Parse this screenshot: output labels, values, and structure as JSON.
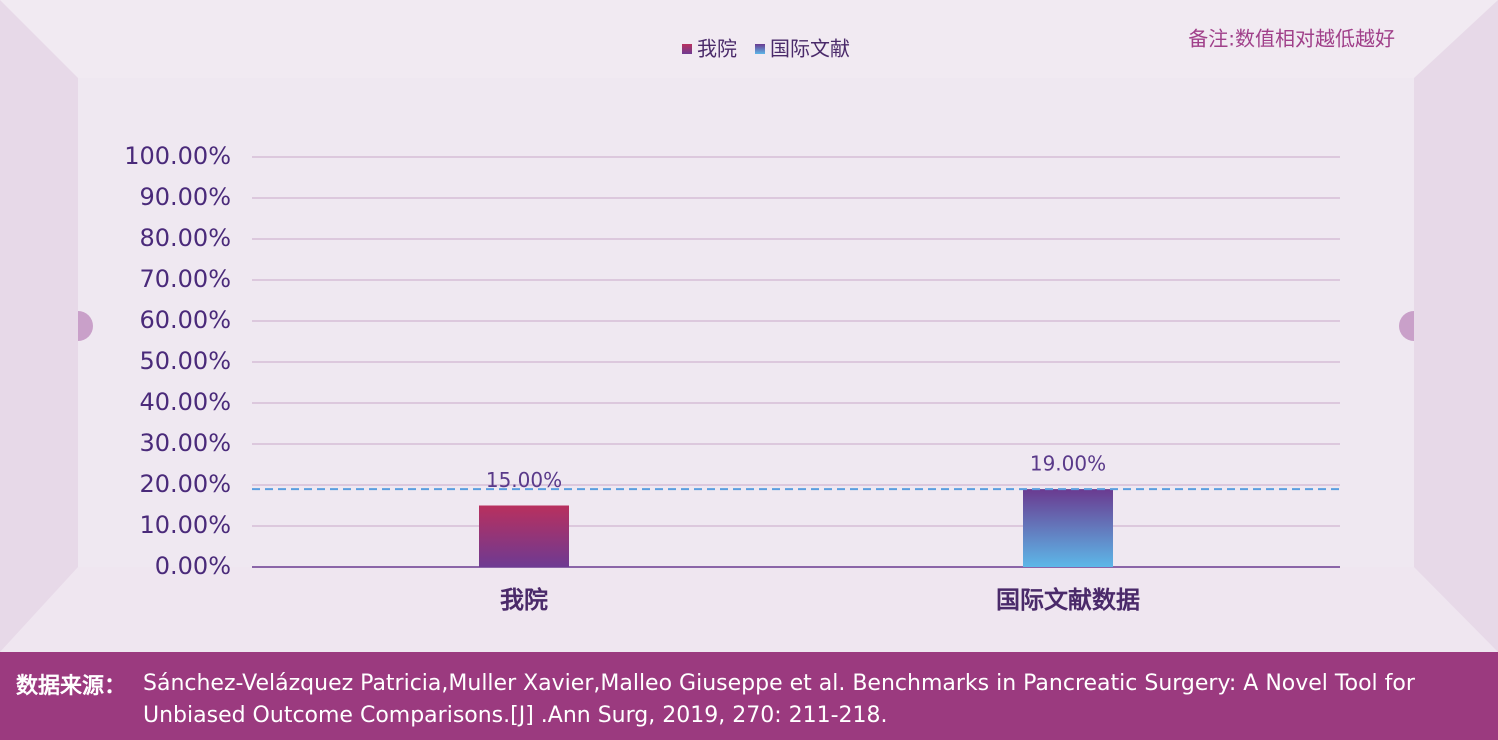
{
  "chart_data": {
    "type": "bar",
    "note": "备注:数值相对越低越好",
    "categories": [
      "我院",
      "国际文献数据"
    ],
    "series": [
      {
        "name": "我院",
        "gradient": [
          "#b8305e",
          "#6e3a92"
        ],
        "values": [
          15,
          null
        ],
        "value_labels": [
          "15.00%",
          null
        ]
      },
      {
        "name": "国际文献",
        "gradient": [
          "#6a3a90",
          "#5db7e8"
        ],
        "values": [
          null,
          19
        ],
        "value_labels": [
          null,
          "19.00%"
        ]
      }
    ],
    "reference_line": 19,
    "ylim": [
      0,
      100
    ],
    "yticks": [
      {
        "value": 0,
        "label": "0.00%"
      },
      {
        "value": 10,
        "label": "10.00%"
      },
      {
        "value": 20,
        "label": "20.00%"
      },
      {
        "value": 30,
        "label": "30.00%"
      },
      {
        "value": 40,
        "label": "40.00%"
      },
      {
        "value": 50,
        "label": "50.00%"
      },
      {
        "value": 60,
        "label": "60.00%"
      },
      {
        "value": 70,
        "label": "70.00%"
      },
      {
        "value": 80,
        "label": "80.00%"
      },
      {
        "value": 90,
        "label": "90.00%"
      },
      {
        "value": 100,
        "label": "100.00%"
      }
    ],
    "grid": true,
    "legend": "top",
    "source_label": "数据来源：",
    "source": "Sánchez-Velázquez Patricia,Muller Xavier,Malleo Giuseppe et al. Benchmarks in Pancreatic Surgery: A Novel Tool for Unbiased Outcome Comparisons.[J] .Ann Surg, 2019, 270: 211-218."
  }
}
